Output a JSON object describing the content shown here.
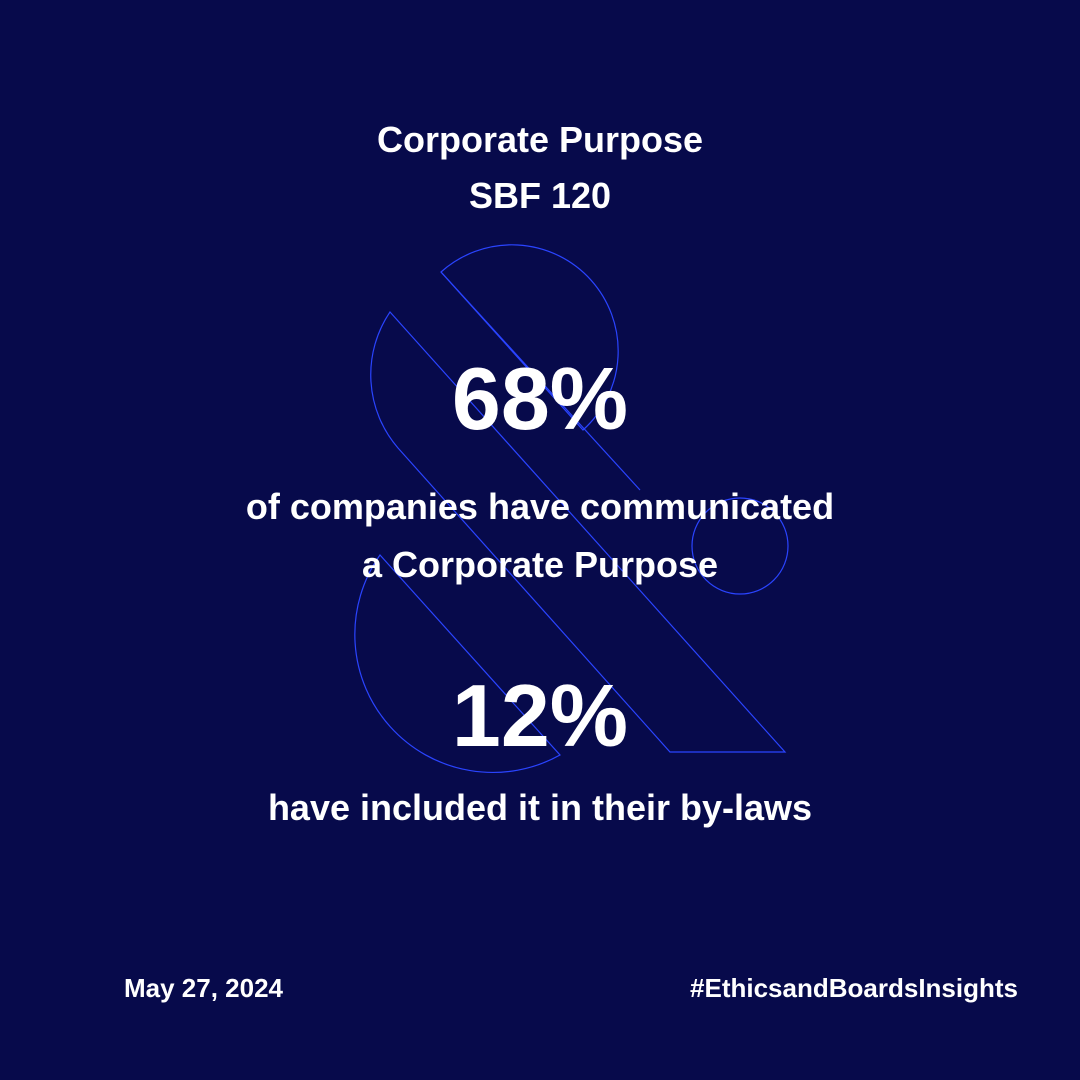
{
  "colors": {
    "background": "#070a4b",
    "text": "#ffffff",
    "outline_graphic": "#2a44ff"
  },
  "title": {
    "line1": "Corporate Purpose",
    "line2": "SBF 120"
  },
  "stats": [
    {
      "value": "68%",
      "description_lines": [
        "of companies have communicated",
        "a Corporate Purpose"
      ]
    },
    {
      "value": "12%",
      "description_lines": [
        "have included it in their by-laws"
      ]
    }
  ],
  "footer": {
    "date": "May 27, 2024",
    "hashtag": "#EthicsandBoardsInsights"
  }
}
